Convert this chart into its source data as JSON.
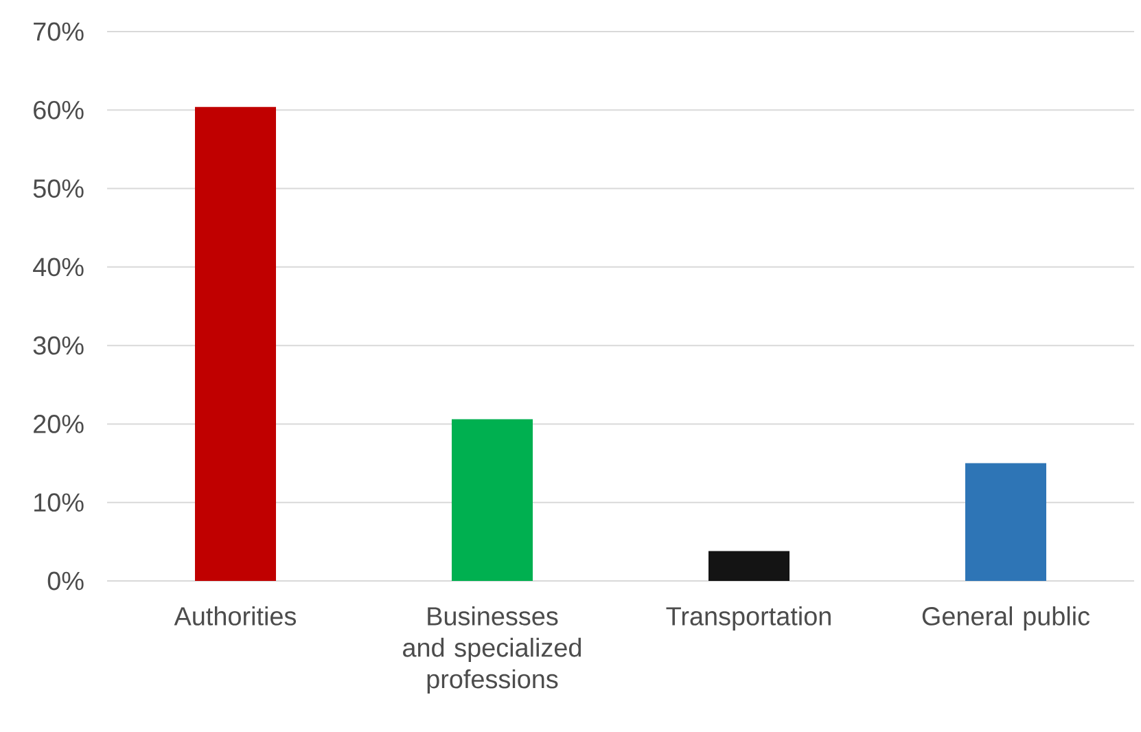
{
  "chart_data": {
    "type": "bar",
    "categories": [
      "Authorities",
      "Businesses and specialized professions",
      "Transportation",
      "General public"
    ],
    "values": [
      60.4,
      20.6,
      3.8,
      15.0
    ],
    "colors": [
      "#c00000",
      "#00b050",
      "#141414",
      "#2e75b6"
    ],
    "ylim": [
      0,
      70
    ],
    "yticks": [
      {
        "value": 0,
        "label": "0%"
      },
      {
        "value": 10,
        "label": "10%"
      },
      {
        "value": 20,
        "label": "20%"
      },
      {
        "value": 30,
        "label": "30%"
      },
      {
        "value": 40,
        "label": "40%"
      },
      {
        "value": 50,
        "label": "50%"
      },
      {
        "value": 60,
        "label": "60%"
      },
      {
        "value": 70,
        "label": "70%"
      }
    ],
    "grid": "y"
  }
}
